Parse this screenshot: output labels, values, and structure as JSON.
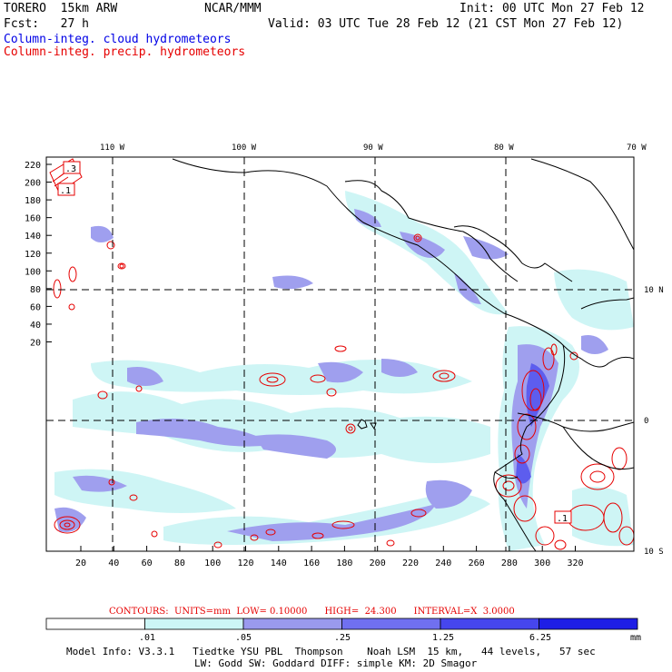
{
  "header": {
    "model": "TORERO  15km ARW",
    "org": "NCAR/MMM",
    "init": "Init: 00 UTC Mon 27 Feb 12",
    "fcst": "Fcst:   27 h",
    "valid": "Valid: 03 UTC Tue 28 Feb 12 (21 CST Mon 27 Feb 12)",
    "field1": "Column-integ. cloud hydrometeors",
    "field2": "Column-integ. precip. hydrometeors"
  },
  "map": {
    "lon_labels": [
      "110 W",
      "100 W",
      "90 W",
      "80 W",
      "70 W"
    ],
    "lat_labels": [
      "10 N",
      "0",
      "10 S"
    ],
    "x_ticks": [
      "20",
      "40",
      "60",
      "80",
      "100",
      "120",
      "140",
      "160",
      "180",
      "200",
      "220",
      "240",
      "260",
      "280",
      "300",
      "320"
    ],
    "y_ticks": [
      "220",
      "200",
      "180",
      "160",
      "140",
      "120",
      "100",
      "80",
      "60",
      "40",
      "20"
    ],
    "contour_labels": [
      ".3",
      ".1",
      ".1"
    ],
    "colors": {
      "frame": "#000000",
      "grid": "#000000",
      "cloud_light": "#ccf5f5",
      "cloud_mid": "#9a9aee",
      "cloud_dark": "#5555ee",
      "precip": "#e60000"
    }
  },
  "contours_info": {
    "text": "CONTOURS:  UNITS=mm  LOW= 0.10000      HIGH=  24.300      INTERVAL=X  3.0000"
  },
  "colorbar": {
    "labels": [
      ".01",
      ".05",
      ".25",
      "1.25",
      "6.25",
      "mm"
    ],
    "colors": [
      "#ffffff",
      "#ccf5f5",
      "#9a9aee",
      "#7070f0",
      "#4646ee",
      "#1e1ee6"
    ]
  },
  "footer": {
    "line1": "Model Info: V3.3.1   Tiedtke YSU PBL  Thompson    Noah LSM  15 km,   44 levels,   57 sec",
    "line2": "LW: Godd SW: Goddard DIFF: simple KM: 2D Smagor"
  }
}
